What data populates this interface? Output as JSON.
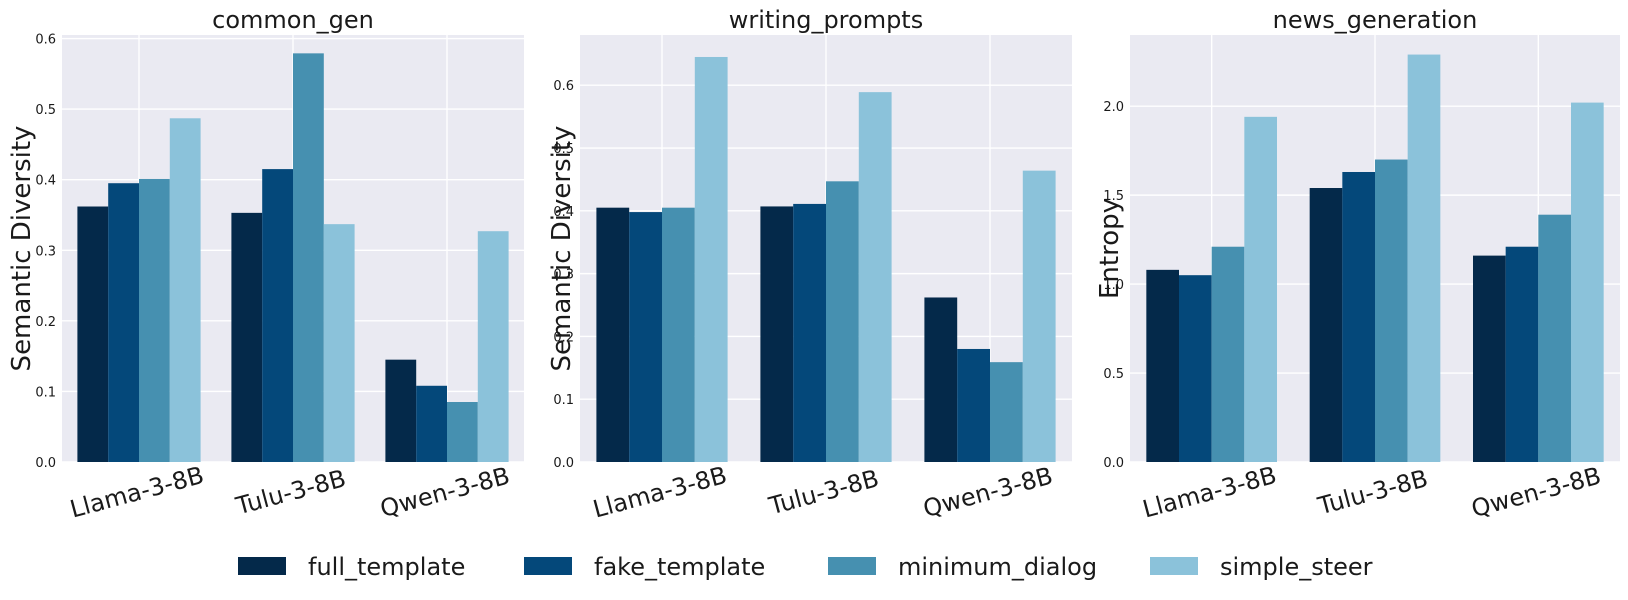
{
  "legend": {
    "items": [
      {
        "label": "full_template",
        "color": "#04294a"
      },
      {
        "label": "fake_template",
        "color": "#04487a"
      },
      {
        "label": "minimum_dialog",
        "color": "#4690b0"
      },
      {
        "label": "simple_steer",
        "color": "#8bc2da"
      }
    ]
  },
  "chart_data": [
    {
      "type": "bar",
      "title": "common_gen",
      "ylabel": "Semantic Diversity",
      "xlabel": "",
      "categories": [
        "Llama-3-8B",
        "Tulu-3-8B",
        "Qwen-3-8B"
      ],
      "ylim": [
        0,
        0.605
      ],
      "yticks": [
        0.0,
        0.1,
        0.2,
        0.3,
        0.4,
        0.5,
        0.6
      ],
      "ytick_labels": [
        "0.0",
        "0.1",
        "0.2",
        "0.3",
        "0.4",
        "0.5",
        "0.6"
      ],
      "grid": true,
      "series": [
        {
          "name": "full_template",
          "values": [
            0.362,
            0.353,
            0.145
          ]
        },
        {
          "name": "fake_template",
          "values": [
            0.395,
            0.415,
            0.108
          ]
        },
        {
          "name": "minimum_dialog",
          "values": [
            0.401,
            0.579,
            0.085
          ]
        },
        {
          "name": "simple_steer",
          "values": [
            0.487,
            0.337,
            0.327
          ]
        }
      ]
    },
    {
      "type": "bar",
      "title": "writing_prompts",
      "ylabel": "Semantic Diversity",
      "xlabel": "",
      "categories": [
        "Llama-3-8B",
        "Tulu-3-8B",
        "Qwen-3-8B"
      ],
      "ylim": [
        0,
        0.68
      ],
      "yticks": [
        0.0,
        0.1,
        0.2,
        0.3,
        0.4,
        0.5,
        0.6
      ],
      "ytick_labels": [
        "0.0",
        "0.1",
        "0.2",
        "0.3",
        "0.4",
        "0.5",
        "0.6"
      ],
      "grid": true,
      "series": [
        {
          "name": "full_template",
          "values": [
            0.405,
            0.407,
            0.262
          ]
        },
        {
          "name": "fake_template",
          "values": [
            0.398,
            0.411,
            0.18
          ]
        },
        {
          "name": "minimum_dialog",
          "values": [
            0.405,
            0.447,
            0.159
          ]
        },
        {
          "name": "simple_steer",
          "values": [
            0.645,
            0.589,
            0.464
          ]
        }
      ]
    },
    {
      "type": "bar",
      "title": "news_generation",
      "ylabel": "Entropy",
      "xlabel": "",
      "categories": [
        "Llama-3-8B",
        "Tulu-3-8B",
        "Qwen-3-8B"
      ],
      "ylim": [
        0,
        2.4
      ],
      "yticks": [
        0.0,
        0.5,
        1.0,
        1.5,
        2.0
      ],
      "ytick_labels": [
        "0.0",
        "0.5",
        "1.0",
        "1.5",
        "2.0"
      ],
      "grid": true,
      "series": [
        {
          "name": "full_template",
          "values": [
            1.08,
            1.54,
            1.16
          ]
        },
        {
          "name": "fake_template",
          "values": [
            1.05,
            1.63,
            1.21
          ]
        },
        {
          "name": "minimum_dialog",
          "values": [
            1.21,
            1.7,
            1.39
          ]
        },
        {
          "name": "simple_steer",
          "values": [
            1.94,
            2.29,
            2.02
          ]
        }
      ]
    }
  ]
}
